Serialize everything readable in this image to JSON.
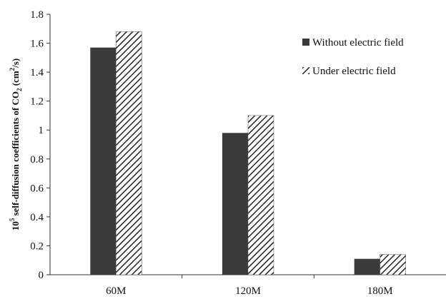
{
  "chart_data": {
    "type": "bar",
    "title": "",
    "xlabel": "",
    "ylabel": {
      "prefix_base": "10",
      "prefix_exp": "5",
      "main": " self-diffusion coefficients of CO",
      "sub": "2",
      "unit_open": " (cm",
      "unit_exp": "2",
      "unit_close": "/s)"
    },
    "ylim": [
      0,
      1.8
    ],
    "yticks": [
      "0",
      "0.2",
      "0.4",
      "0.6",
      "0.8",
      "1",
      "1.2",
      "1.4",
      "1.6",
      "1.8"
    ],
    "categories": [
      "60M",
      "120M",
      "180M"
    ],
    "series": [
      {
        "name": "Without electric field",
        "values": [
          1.57,
          0.98,
          0.11
        ],
        "color": "#3a3a3a",
        "pattern": "solid"
      },
      {
        "name": "Under electric field",
        "values": [
          1.68,
          1.1,
          0.14
        ],
        "color": "#222222",
        "pattern": "hatch"
      }
    ],
    "grid": false,
    "legend": "top-right"
  }
}
